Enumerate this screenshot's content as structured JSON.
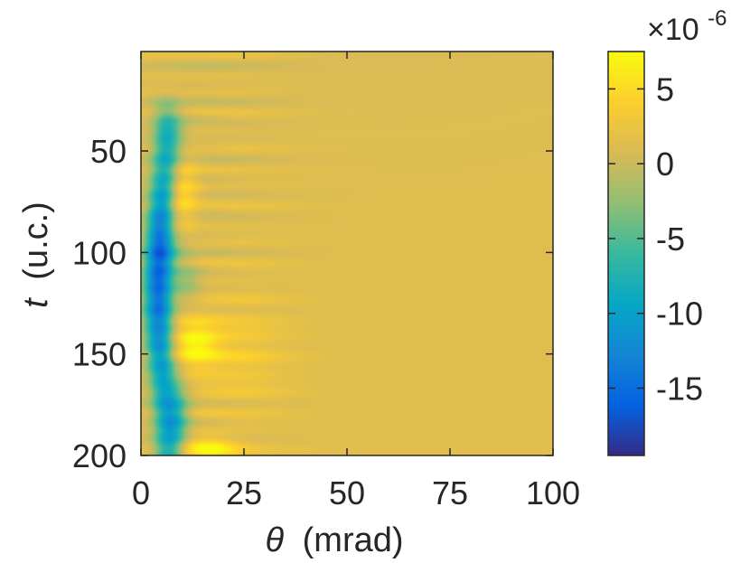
{
  "chart_data": {
    "type": "heatmap",
    "xlabel": {
      "symbol": "θ",
      "unit": "(mrad)"
    },
    "ylabel": {
      "symbol": "t",
      "unit": "(u.c.)"
    },
    "xlim": [
      0,
      100
    ],
    "ylim": [
      1,
      200
    ],
    "y_direction": "reversed",
    "x_ticks": [
      "0",
      "25",
      "50",
      "75",
      "100"
    ],
    "y_ticks": [
      "50",
      "100",
      "150",
      "200"
    ],
    "colorbar": {
      "colormap": "parula",
      "range": [
        -1.95e-05,
        7.5e-06
      ],
      "ticks": [
        "5",
        "0",
        "-5",
        "-10",
        "-15"
      ],
      "exponent_label": {
        "base": "×10",
        "exp": "-6"
      }
    },
    "background_value": 1.5e-06,
    "features": [
      {
        "name": "negative ridge",
        "theta": 5,
        "t_range": [
          25,
          200
        ],
        "min_value": -1.9e-05
      },
      {
        "name": "positive lobe",
        "theta": 14,
        "t_range": [
          135,
          155
        ],
        "max_value": 6.5e-06
      },
      {
        "name": "positive lobe",
        "theta": 9,
        "t_range": [
          55,
          85
        ],
        "max_value": 5.5e-06
      },
      {
        "name": "positive lobe",
        "theta": 15,
        "t_range": [
          190,
          200
        ],
        "max_value": 7e-06
      }
    ]
  }
}
